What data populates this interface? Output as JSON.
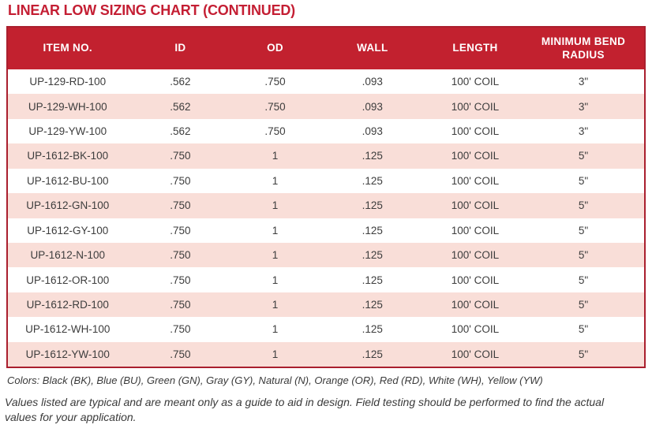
{
  "title": "LINEAR LOW SIZING CHART (CONTINUED)",
  "table": {
    "columns": [
      "ITEM NO.",
      "ID",
      "OD",
      "WALL",
      "LENGTH",
      "MINIMUM BEND RADIUS"
    ],
    "rows": [
      [
        "UP-129-RD-100",
        ".562",
        ".750",
        ".093",
        "100' COIL",
        "3\""
      ],
      [
        "UP-129-WH-100",
        ".562",
        ".750",
        ".093",
        "100' COIL",
        "3\""
      ],
      [
        "UP-129-YW-100",
        ".562",
        ".750",
        ".093",
        "100' COIL",
        "3\""
      ],
      [
        "UP-1612-BK-100",
        ".750",
        "1",
        ".125",
        "100' COIL",
        "5\""
      ],
      [
        "UP-1612-BU-100",
        ".750",
        "1",
        ".125",
        "100' COIL",
        "5\""
      ],
      [
        "UP-1612-GN-100",
        ".750",
        "1",
        ".125",
        "100' COIL",
        "5\""
      ],
      [
        "UP-1612-GY-100",
        ".750",
        "1",
        ".125",
        "100' COIL",
        "5\""
      ],
      [
        "UP-1612-N-100",
        ".750",
        "1",
        ".125",
        "100' COIL",
        "5\""
      ],
      [
        "UP-1612-OR-100",
        ".750",
        "1",
        ".125",
        "100' COIL",
        "5\""
      ],
      [
        "UP-1612-RD-100",
        ".750",
        "1",
        ".125",
        "100' COIL",
        "5\""
      ],
      [
        "UP-1612-WH-100",
        ".750",
        "1",
        ".125",
        "100' COIL",
        "5\""
      ],
      [
        "UP-1612-YW-100",
        ".750",
        "1",
        ".125",
        "100' COIL",
        "5\""
      ]
    ]
  },
  "notes": {
    "colors": "Colors: Black (BK), Blue (BU), Green (GN), Gray (GY), Natural (N), Orange (OR), Red (RD), White (WH), Yellow (YW)",
    "disclaimer": "Values listed are typical and are meant only as a guide to aid in design. Field testing should be performed to find the actual values for your application."
  },
  "colors": {
    "title_text": "#c41e33",
    "header_bg": "#c2212f",
    "header_text": "#ffffff",
    "row_alt_bg": "#f9ded8",
    "table_border": "#aa1f2e",
    "body_text": "#3d3d3d"
  }
}
